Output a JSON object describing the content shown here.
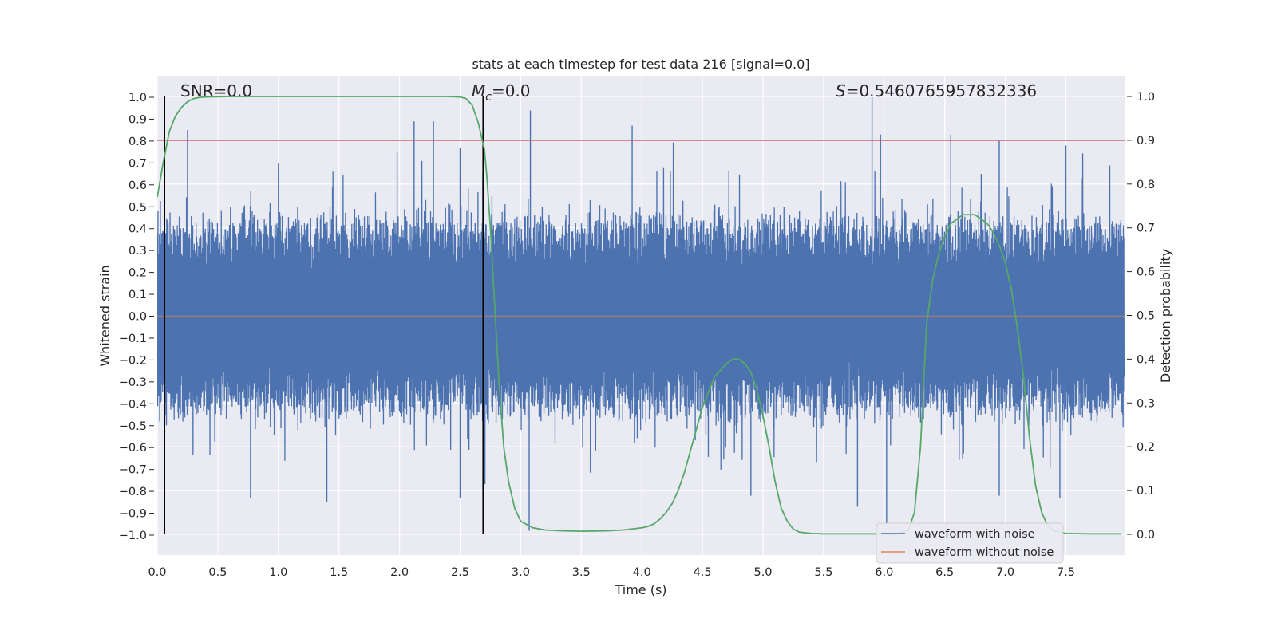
{
  "chart_data": {
    "type": "line",
    "title": "stats at each timestep for test data 216 [signal=0.0]",
    "xlabel": "Time (s)",
    "ylabel": "Whitened strain",
    "ylabel_right": "Detection probability",
    "xlim": [
      0.0,
      8.0
    ],
    "ylim": [
      -1.08,
      1.1
    ],
    "ylim_right": [
      -0.04,
      1.05
    ],
    "x_ticks": [
      "0.0",
      "0.5",
      "1.0",
      "1.5",
      "2.0",
      "2.5",
      "3.0",
      "3.5",
      "4.0",
      "4.5",
      "5.0",
      "5.5",
      "6.0",
      "6.5",
      "7.0",
      "7.5"
    ],
    "y_ticks": [
      "1.0",
      "0.9",
      "0.8",
      "0.7",
      "0.6",
      "0.5",
      "0.4",
      "0.3",
      "0.2",
      "0.1",
      "0.0",
      "−0.1",
      "−0.2",
      "−0.3",
      "−0.4",
      "−0.5",
      "−0.6",
      "−0.7",
      "−0.8",
      "−0.9",
      "−1.0"
    ],
    "y_ticks_right": [
      "1.0",
      "0.9",
      "0.8",
      "0.7",
      "0.6",
      "0.5",
      "0.4",
      "0.3",
      "0.2",
      "0.1",
      "0.0"
    ],
    "grid": true,
    "annotations": {
      "snr": "SNR=0.0",
      "mc": "M",
      "mc_sub": "c",
      "mc_value": "=0.0",
      "s_symbol": "S",
      "s_value": "=0.5460765957832336"
    },
    "vertical_lines": [
      0.06,
      2.69
    ],
    "threshold_right": 0.9,
    "noise_waveform": {
      "name": "waveform with noise",
      "color": "#4c72b0",
      "description": "dense whitened strain noise, typical envelope ±0.45 with spikes near ±0.9",
      "envelope_upper": 0.45,
      "envelope_lower": -0.45,
      "spikes": [
        [
          0.25,
          0.85
        ],
        [
          1.0,
          0.7
        ],
        [
          1.98,
          0.75
        ],
        [
          2.12,
          0.89
        ],
        [
          2.28,
          0.89
        ],
        [
          2.5,
          0.77
        ],
        [
          3.08,
          0.94
        ],
        [
          3.07,
          -0.98
        ],
        [
          3.92,
          0.87
        ],
        [
          5.9,
          1.0
        ],
        [
          5.97,
          0.83
        ],
        [
          6.02,
          -0.95
        ],
        [
          6.55,
          0.83
        ],
        [
          6.95,
          0.8
        ],
        [
          7.5,
          0.78
        ],
        [
          1.4,
          -0.85
        ],
        [
          0.77,
          -0.83
        ],
        [
          2.5,
          -0.83
        ],
        [
          4.9,
          -0.82
        ],
        [
          5.78,
          -0.87
        ],
        [
          6.95,
          -0.82
        ],
        [
          7.45,
          -0.83
        ]
      ]
    },
    "clean_waveform": {
      "name": "waveform without noise",
      "color": "#dd8452",
      "x": [
        0.0,
        8.0
      ],
      "y": [
        0.0,
        0.0
      ]
    },
    "series": [
      {
        "name": "Detection probability",
        "color": "#55a868",
        "axis": "right",
        "x": [
          0.0,
          0.05,
          0.1,
          0.15,
          0.2,
          0.25,
          0.3,
          0.35,
          0.4,
          0.6,
          1.0,
          1.5,
          2.0,
          2.4,
          2.5,
          2.55,
          2.6,
          2.65,
          2.7,
          2.72,
          2.75,
          2.78,
          2.82,
          2.86,
          2.9,
          2.95,
          3.0,
          3.1,
          3.2,
          3.35,
          3.5,
          3.7,
          3.85,
          4.0,
          4.05,
          4.1,
          4.15,
          4.2,
          4.25,
          4.3,
          4.35,
          4.4,
          4.5,
          4.6,
          4.7,
          4.75,
          4.8,
          4.85,
          4.9,
          4.95,
          5.0,
          5.05,
          5.1,
          5.15,
          5.2,
          5.25,
          5.3,
          5.4,
          5.5,
          5.7,
          6.0,
          6.1,
          6.2,
          6.25,
          6.3,
          6.35,
          6.4,
          6.45,
          6.5,
          6.55,
          6.6,
          6.65,
          6.7,
          6.75,
          6.8,
          6.85,
          6.9,
          6.95,
          7.0,
          7.05,
          7.1,
          7.15,
          7.2,
          7.25,
          7.3,
          7.35,
          7.4,
          7.5,
          7.7,
          7.96
        ],
        "y": [
          0.77,
          0.85,
          0.92,
          0.955,
          0.975,
          0.988,
          0.995,
          0.998,
          0.999,
          1.0,
          1.0,
          1.0,
          1.0,
          1.0,
          0.999,
          0.995,
          0.98,
          0.94,
          0.88,
          0.82,
          0.7,
          0.55,
          0.35,
          0.2,
          0.12,
          0.06,
          0.03,
          0.015,
          0.01,
          0.008,
          0.007,
          0.008,
          0.01,
          0.015,
          0.018,
          0.024,
          0.035,
          0.05,
          0.07,
          0.1,
          0.14,
          0.19,
          0.29,
          0.36,
          0.39,
          0.4,
          0.4,
          0.39,
          0.37,
          0.33,
          0.27,
          0.2,
          0.12,
          0.06,
          0.03,
          0.012,
          0.005,
          0.002,
          0.001,
          0.001,
          0.001,
          0.001,
          0.01,
          0.05,
          0.2,
          0.48,
          0.58,
          0.64,
          0.68,
          0.71,
          0.72,
          0.73,
          0.73,
          0.73,
          0.72,
          0.71,
          0.69,
          0.66,
          0.62,
          0.56,
          0.47,
          0.36,
          0.22,
          0.11,
          0.05,
          0.02,
          0.008,
          0.002,
          0.001,
          0.001
        ]
      }
    ],
    "legend": {
      "placement": "bottom-right",
      "entries": [
        "waveform with noise",
        "waveform without noise"
      ]
    }
  }
}
